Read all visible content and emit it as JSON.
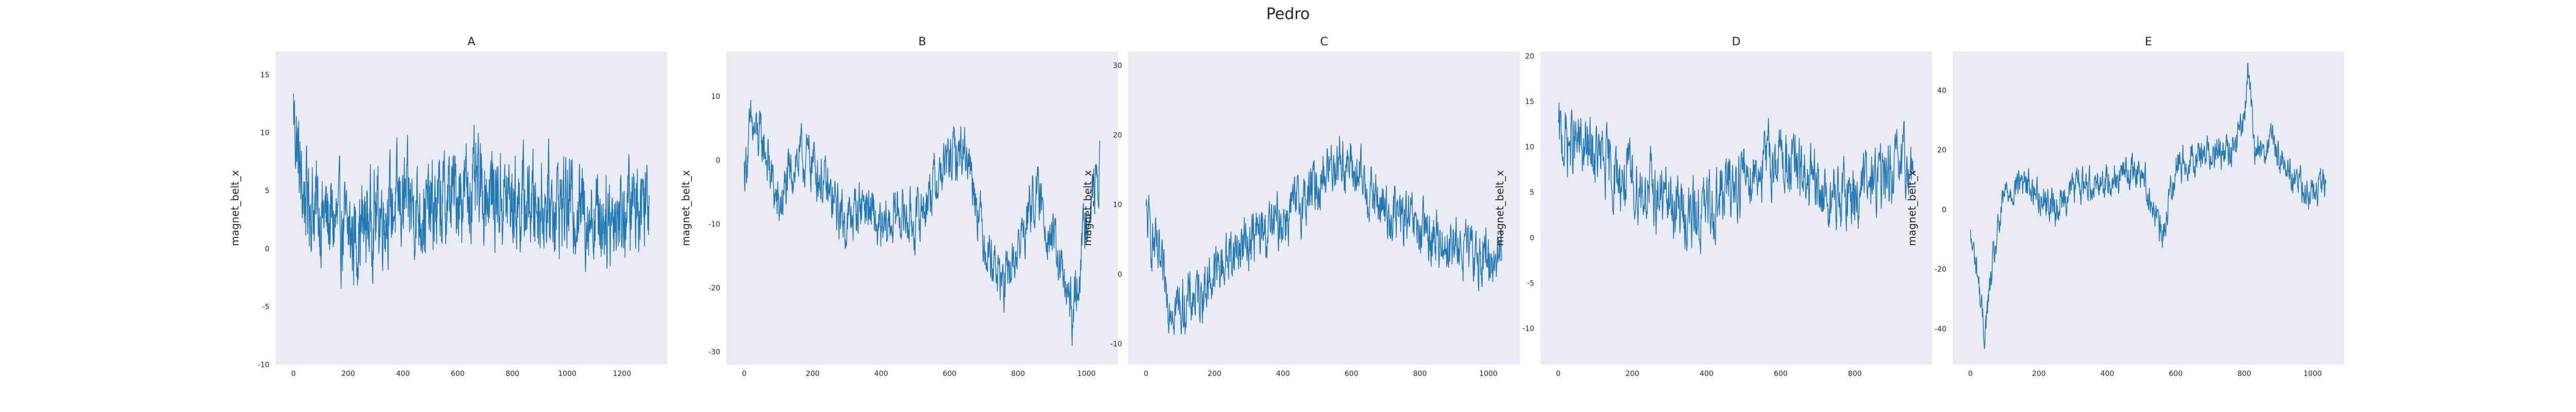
{
  "figure": {
    "title": "Pedro"
  },
  "style": {
    "panel_bg": "#eaeaf2",
    "line_color": "#1f77b4",
    "text_color": "#262626"
  },
  "chart_data": [
    {
      "type": "line",
      "title": "A",
      "ylabel": "magnet_belt_x",
      "xlim": [
        -65,
        1365
      ],
      "ylim": [
        -10,
        17
      ],
      "xticks": [
        0,
        200,
        400,
        600,
        800,
        1000,
        1200
      ],
      "yticks": [
        -10,
        -5,
        0,
        5,
        10,
        15
      ],
      "n_points": 1300,
      "profile": [
        [
          0,
          12
        ],
        [
          30,
          5
        ],
        [
          100,
          3
        ],
        [
          220,
          1
        ],
        [
          300,
          3
        ],
        [
          400,
          4
        ],
        [
          500,
          3
        ],
        [
          600,
          5
        ],
        [
          700,
          5
        ],
        [
          800,
          4
        ],
        [
          900,
          4
        ],
        [
          1000,
          4
        ],
        [
          1100,
          3
        ],
        [
          1200,
          3
        ],
        [
          1299,
          5
        ]
      ],
      "noise": 3.2,
      "clip": [
        -9,
        16
      ]
    },
    {
      "type": "line",
      "title": "B",
      "ylabel": "magnet_belt_x",
      "xlim": [
        -52,
        1092
      ],
      "ylim": [
        -32,
        17
      ],
      "xticks": [
        0,
        200,
        400,
        600,
        800,
        1000
      ],
      "yticks": [
        -30,
        -20,
        -10,
        0,
        10
      ],
      "n_points": 1040,
      "profile": [
        [
          0,
          -2
        ],
        [
          20,
          5
        ],
        [
          60,
          2
        ],
        [
          100,
          -8
        ],
        [
          150,
          0
        ],
        [
          200,
          0
        ],
        [
          250,
          -6
        ],
        [
          300,
          -10
        ],
        [
          350,
          -6
        ],
        [
          400,
          -12
        ],
        [
          450,
          -8
        ],
        [
          500,
          -10
        ],
        [
          550,
          -4
        ],
        [
          600,
          0
        ],
        [
          650,
          2
        ],
        [
          700,
          -12
        ],
        [
          760,
          -20
        ],
        [
          800,
          -14
        ],
        [
          850,
          -5
        ],
        [
          900,
          -12
        ],
        [
          960,
          -25
        ],
        [
          1000,
          -8
        ],
        [
          1039,
          -2
        ]
      ],
      "noise": 3.4,
      "clip": [
        -30,
        16
      ]
    },
    {
      "type": "line",
      "title": "C",
      "ylabel": "magnet_belt_x",
      "xlim": [
        -52,
        1092
      ],
      "ylim": [
        -13,
        32
      ],
      "xticks": [
        0,
        200,
        400,
        600,
        800,
        1000
      ],
      "yticks": [
        -10,
        0,
        10,
        20,
        30
      ],
      "n_points": 1040,
      "profile": [
        [
          0,
          8
        ],
        [
          30,
          3
        ],
        [
          60,
          -3
        ],
        [
          100,
          -5
        ],
        [
          150,
          -3
        ],
        [
          200,
          0
        ],
        [
          250,
          3
        ],
        [
          300,
          5
        ],
        [
          350,
          6
        ],
        [
          400,
          8
        ],
        [
          450,
          10
        ],
        [
          500,
          13
        ],
        [
          560,
          17
        ],
        [
          600,
          15
        ],
        [
          650,
          12
        ],
        [
          700,
          9
        ],
        [
          750,
          8
        ],
        [
          800,
          6
        ],
        [
          850,
          5
        ],
        [
          900,
          4
        ],
        [
          950,
          3
        ],
        [
          1000,
          2
        ],
        [
          1039,
          3
        ]
      ],
      "noise": 3.2,
      "clip": [
        -12,
        30
      ]
    },
    {
      "type": "line",
      "title": "D",
      "ylabel": "magnet_belt_x",
      "xlim": [
        -48,
        1008
      ],
      "ylim": [
        -14,
        20.5
      ],
      "xticks": [
        0,
        200,
        400,
        600,
        800
      ],
      "yticks": [
        -10,
        -5,
        0,
        5,
        10,
        15,
        20
      ],
      "n_points": 960,
      "profile": [
        [
          0,
          11
        ],
        [
          50,
          10
        ],
        [
          100,
          9
        ],
        [
          150,
          7
        ],
        [
          200,
          6
        ],
        [
          250,
          5
        ],
        [
          300,
          4
        ],
        [
          360,
          2
        ],
        [
          400,
          3
        ],
        [
          450,
          5
        ],
        [
          500,
          7
        ],
        [
          550,
          8
        ],
        [
          600,
          9
        ],
        [
          650,
          7
        ],
        [
          700,
          5
        ],
        [
          750,
          4
        ],
        [
          800,
          5
        ],
        [
          850,
          6
        ],
        [
          900,
          7
        ],
        [
          959,
          8
        ]
      ],
      "noise": 3.0,
      "clip": [
        -12,
        19
      ]
    },
    {
      "type": "line",
      "title": "E",
      "ylabel": "magnet_belt_x",
      "xlim": [
        -52,
        1092
      ],
      "ylim": [
        -52,
        53
      ],
      "xticks": [
        0,
        200,
        400,
        600,
        800,
        1000
      ],
      "yticks": [
        -40,
        -20,
        0,
        20,
        40
      ],
      "n_points": 1040,
      "profile": [
        [
          0,
          -10
        ],
        [
          20,
          -20
        ],
        [
          40,
          -42
        ],
        [
          70,
          -15
        ],
        [
          100,
          5
        ],
        [
          150,
          10
        ],
        [
          200,
          5
        ],
        [
          250,
          0
        ],
        [
          300,
          8
        ],
        [
          400,
          10
        ],
        [
          500,
          14
        ],
        [
          560,
          -10
        ],
        [
          600,
          15
        ],
        [
          700,
          20
        ],
        [
          760,
          18
        ],
        [
          800,
          30
        ],
        [
          810,
          48
        ],
        [
          830,
          20
        ],
        [
          880,
          22
        ],
        [
          950,
          10
        ],
        [
          1000,
          5
        ],
        [
          1039,
          8
        ]
      ],
      "noise": 4.5,
      "clip": [
        -48,
        49
      ]
    }
  ]
}
